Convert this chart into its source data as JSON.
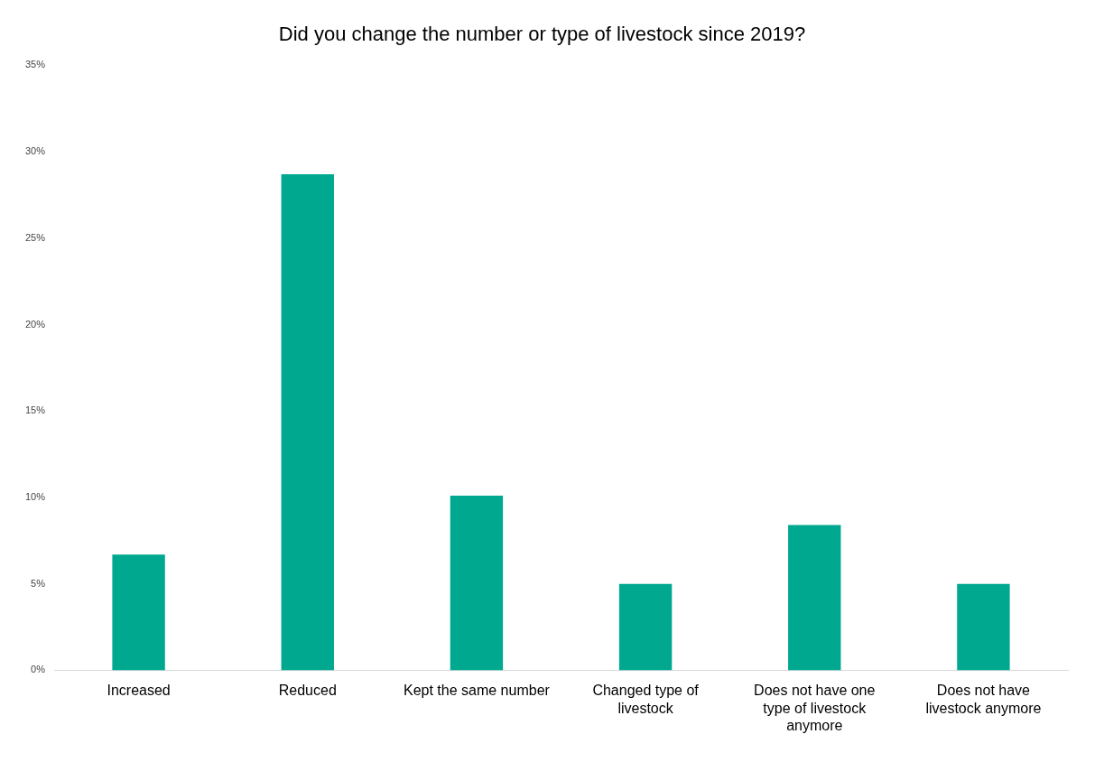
{
  "chart_data": {
    "type": "bar",
    "title": "Did you change the number or type of livestock since 2019?",
    "categories": [
      "Increased",
      "Reduced",
      "Kept the same number",
      "Changed type of livestock",
      "Does not have one type of livestock anymore",
      "Does not have livestock anymore"
    ],
    "values": [
      6.7,
      28.7,
      10.1,
      5.0,
      8.4,
      5.0
    ],
    "color": "#00a88f",
    "ylim": [
      0,
      35
    ],
    "yticks": [
      {
        "value": 0,
        "label": "0%"
      },
      {
        "value": 5,
        "label": "5%"
      },
      {
        "value": 10,
        "label": "10%"
      },
      {
        "value": 15,
        "label": "15%"
      },
      {
        "value": 20,
        "label": "20%"
      },
      {
        "value": 25,
        "label": "25%"
      },
      {
        "value": 30,
        "label": "30%"
      },
      {
        "value": 35,
        "label": "35%"
      }
    ],
    "grid": false,
    "legend": false
  }
}
